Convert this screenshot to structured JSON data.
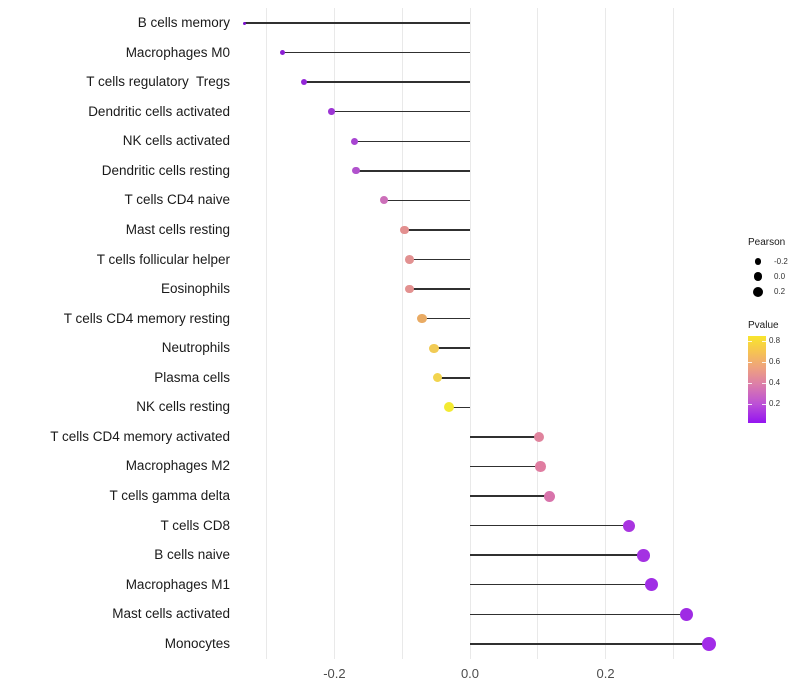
{
  "chart_data": {
    "type": "lollipop",
    "title": "",
    "xlabel": "",
    "ylabel": "",
    "grid": true,
    "xlim": [
      -0.361,
      0.391
    ],
    "gridline_values": [
      -0.3,
      -0.2,
      -0.1,
      0.0,
      0.1,
      0.2,
      0.3
    ],
    "x_ticks": [
      {
        "value": -0.2,
        "label": "-0.2"
      },
      {
        "value": 0.0,
        "label": "0.0"
      },
      {
        "value": 0.2,
        "label": "0.2"
      }
    ],
    "baseline_value": 0.0,
    "rows": [
      {
        "label": "B cells memory",
        "pearson": -0.333,
        "pvalue": 0.05,
        "color": "#7d11cf",
        "size": 3
      },
      {
        "label": "Macrophages M0",
        "pearson": -0.277,
        "pvalue": 0.1,
        "color": "#8c1fd4",
        "size": 5.3
      },
      {
        "label": "T cells regulatory  Tregs",
        "pearson": -0.245,
        "pvalue": 0.15,
        "color": "#9326d8",
        "size": 6
      },
      {
        "label": "Dendritic cells activated",
        "pearson": -0.204,
        "pvalue": 0.22,
        "color": "#9d36d5",
        "size": 6.5
      },
      {
        "label": "NK cells activated",
        "pearson": -0.17,
        "pvalue": 0.27,
        "color": "#a845d2",
        "size": 7
      },
      {
        "label": "Dendritic cells resting",
        "pearson": -0.168,
        "pvalue": 0.32,
        "color": "#b152cd",
        "size": 7.3
      },
      {
        "label": "T cells CD4 naive",
        "pearson": -0.127,
        "pvalue": 0.42,
        "color": "#cc6fb9",
        "size": 8
      },
      {
        "label": "Mast cells resting",
        "pearson": -0.097,
        "pvalue": 0.55,
        "color": "#e39090",
        "size": 8.7
      },
      {
        "label": "T cells follicular helper",
        "pearson": -0.089,
        "pvalue": 0.56,
        "color": "#e29191",
        "size": 8.7
      },
      {
        "label": "Eosinophils",
        "pearson": -0.089,
        "pvalue": 0.56,
        "color": "#e39190",
        "size": 8.7
      },
      {
        "label": "T cells CD4 memory resting",
        "pearson": -0.071,
        "pvalue": 0.65,
        "color": "#e9ab64",
        "size": 9.3
      },
      {
        "label": "Neutrophils",
        "pearson": -0.053,
        "pvalue": 0.74,
        "color": "#f1cb55",
        "size": 9.3
      },
      {
        "label": "Plasma cells",
        "pearson": -0.048,
        "pvalue": 0.77,
        "color": "#f2d44e",
        "size": 9.3
      },
      {
        "label": "NK cells resting",
        "pearson": -0.031,
        "pvalue": 0.85,
        "color": "#f3ea31",
        "size": 10
      },
      {
        "label": "T cells CD4 memory activated",
        "pearson": 0.102,
        "pvalue": 0.5,
        "color": "#e0839d",
        "size": 10
      },
      {
        "label": "Macrophages M2",
        "pearson": 0.104,
        "pvalue": 0.49,
        "color": "#e07da1",
        "size": 10.5
      },
      {
        "label": "T cells gamma delta",
        "pearson": 0.117,
        "pvalue": 0.44,
        "color": "#d873ab",
        "size": 11
      },
      {
        "label": "T cells CD8",
        "pearson": 0.235,
        "pvalue": 0.14,
        "color": "#a935e0",
        "size": 12
      },
      {
        "label": "B cells naive",
        "pearson": 0.256,
        "pvalue": 0.12,
        "color": "#a432e2",
        "size": 12.7
      },
      {
        "label": "Macrophages M1",
        "pearson": 0.268,
        "pvalue": 0.1,
        "color": "#a02ee5",
        "size": 13.3
      },
      {
        "label": "Mast cells activated",
        "pearson": 0.319,
        "pvalue": 0.07,
        "color": "#9f2be4",
        "size": 13.5
      },
      {
        "label": "Monocytes",
        "pearson": 0.353,
        "pvalue": 0.05,
        "color": "#a22ce8",
        "size": 14
      }
    ],
    "legend_size": {
      "title": "Pearson",
      "entries": [
        {
          "label": "-0.2",
          "diameter": 6.7
        },
        {
          "label": "0.0",
          "diameter": 8.7
        },
        {
          "label": "0.2",
          "diameter": 10
        }
      ],
      "dot_color": "#000000"
    },
    "legend_color": {
      "title": "Pvalue",
      "bar_max": 0.85,
      "bar_min": 0.02,
      "ticks": [
        {
          "label": "0.8",
          "value": 0.8
        },
        {
          "label": "0.6",
          "value": 0.6
        },
        {
          "label": "0.4",
          "value": 0.4
        },
        {
          "label": "0.2",
          "value": 0.2
        }
      ],
      "gradient_stops": [
        {
          "pos": 0,
          "color": "#f8e52d"
        },
        {
          "pos": 15,
          "color": "#f7c94b"
        },
        {
          "pos": 35,
          "color": "#efa47b"
        },
        {
          "pos": 55,
          "color": "#dd7fa8"
        },
        {
          "pos": 78,
          "color": "#bc51d6"
        },
        {
          "pos": 100,
          "color": "#9414f0"
        }
      ]
    },
    "colors": {
      "grid": "#e9e9e9",
      "segment": "#303030",
      "axis_text": "#4d4d4d",
      "label_text": "#1a1a1a"
    }
  }
}
